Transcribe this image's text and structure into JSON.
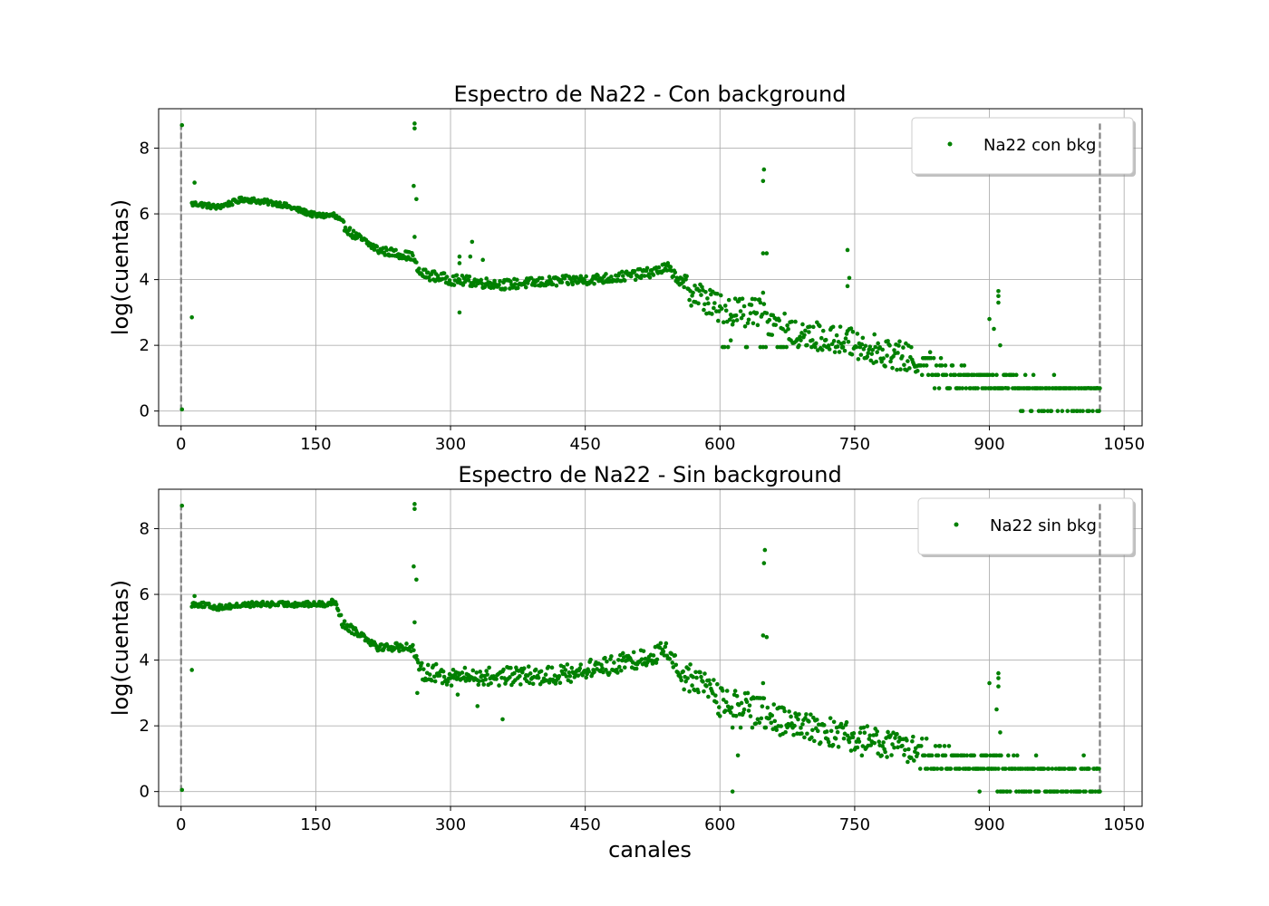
{
  "figure": {
    "xlabel": "canales"
  },
  "chart_data": [
    {
      "type": "scatter",
      "title": "Espectro de Na22 - Con background",
      "xlabel": "",
      "ylabel": "log(cuentas)",
      "xlim": [
        -25,
        1070
      ],
      "ylim": [
        -0.45,
        9.2
      ],
      "xticks": [
        0,
        150,
        300,
        450,
        600,
        750,
        900,
        1050
      ],
      "yticks": [
        0,
        2,
        4,
        6,
        8
      ],
      "grid": true,
      "legend": "top-right",
      "marker_color": "#008000",
      "vline_color": "#808080",
      "vlines": [
        0,
        1023
      ],
      "series": [
        {
          "name": "Na22 con bkg",
          "profile": [
            [
              0,
              6.3
            ],
            [
              20,
              6.3
            ],
            [
              40,
              6.2
            ],
            [
              70,
              6.45
            ],
            [
              110,
              6.3
            ],
            [
              150,
              5.95
            ],
            [
              170,
              5.95
            ],
            [
              190,
              5.4
            ],
            [
              220,
              4.9
            ],
            [
              258,
              4.7
            ],
            [
              265,
              4.2
            ],
            [
              300,
              4.0
            ],
            [
              360,
              3.85
            ],
            [
              420,
              3.95
            ],
            [
              480,
              4.05
            ],
            [
              520,
              4.2
            ],
            [
              540,
              4.35
            ],
            [
              548,
              4.2
            ],
            [
              560,
              3.8
            ],
            [
              600,
              3.1
            ],
            [
              640,
              3.0
            ],
            [
              680,
              2.4
            ],
            [
              760,
              2.0
            ],
            [
              820,
              1.5
            ],
            [
              870,
              1.0
            ],
            [
              1000,
              0.4
            ],
            [
              1020,
              0.3
            ]
          ],
          "outliers": [
            [
              12,
              2.85
            ],
            [
              15,
              6.95
            ],
            [
              260,
              8.75
            ],
            [
              260,
              8.6
            ],
            [
              259,
              6.85
            ],
            [
              262,
              6.45
            ],
            [
              260,
              5.3
            ],
            [
              310,
              4.7
            ],
            [
              310,
              4.5
            ],
            [
              310,
              3.0
            ],
            [
              324,
              5.15
            ],
            [
              322,
              4.7
            ],
            [
              336,
              3.75
            ],
            [
              336,
              4.6
            ],
            [
              360,
              3.7
            ],
            [
              448,
              3.9
            ],
            [
              542,
              4.5
            ],
            [
              649,
              7.35
            ],
            [
              648,
              7.0
            ],
            [
              648,
              4.8
            ],
            [
              652,
              4.8
            ],
            [
              648,
              3.6
            ],
            [
              645,
              3.3
            ],
            [
              742,
              4.9
            ],
            [
              744,
              4.05
            ],
            [
              742,
              3.8
            ],
            [
              612,
              2.15
            ],
            [
              900,
              2.8
            ],
            [
              905,
              2.5
            ],
            [
              910,
              3.65
            ],
            [
              910,
              3.5
            ],
            [
              910,
              3.3
            ],
            [
              912,
              2.0
            ],
            [
              918,
              0.7
            ],
            [
              1010,
              0.7
            ],
            [
              1020,
              0.7
            ],
            [
              1022,
              0.0
            ],
            [
              1,
              8.7
            ],
            [
              1,
              0.05
            ]
          ]
        }
      ]
    },
    {
      "type": "scatter",
      "title": "Espectro de Na22 - Sin background",
      "xlabel": "canales",
      "ylabel": "log(cuentas)",
      "xlim": [
        -25,
        1070
      ],
      "ylim": [
        -0.45,
        9.2
      ],
      "xticks": [
        0,
        150,
        300,
        450,
        600,
        750,
        900,
        1050
      ],
      "yticks": [
        0,
        2,
        4,
        6,
        8
      ],
      "grid": true,
      "legend": "top-right",
      "marker_color": "#008000",
      "vline_color": "#808080",
      "vlines": [
        0,
        1023
      ],
      "series": [
        {
          "name": "Na22 sin bkg",
          "profile": [
            [
              0,
              5.7
            ],
            [
              20,
              5.7
            ],
            [
              40,
              5.6
            ],
            [
              80,
              5.7
            ],
            [
              120,
              5.7
            ],
            [
              160,
              5.7
            ],
            [
              172,
              5.8
            ],
            [
              180,
              5.1
            ],
            [
              200,
              4.8
            ],
            [
              220,
              4.4
            ],
            [
              258,
              4.4
            ],
            [
              265,
              3.7
            ],
            [
              300,
              3.5
            ],
            [
              360,
              3.5
            ],
            [
              420,
              3.55
            ],
            [
              480,
              3.85
            ],
            [
              520,
              4.1
            ],
            [
              540,
              4.3
            ],
            [
              548,
              4.0
            ],
            [
              560,
              3.5
            ],
            [
              590,
              3.2
            ],
            [
              600,
              2.7
            ],
            [
              640,
              2.5
            ],
            [
              680,
              2.0
            ],
            [
              760,
              1.6
            ],
            [
              820,
              1.2
            ],
            [
              870,
              0.8
            ],
            [
              1000,
              0.3
            ],
            [
              1020,
              0.3
            ]
          ],
          "outliers": [
            [
              12,
              3.7
            ],
            [
              15,
              5.95
            ],
            [
              260,
              8.75
            ],
            [
              260,
              8.6
            ],
            [
              259,
              6.85
            ],
            [
              262,
              6.45
            ],
            [
              260,
              5.15
            ],
            [
              263,
              3.0
            ],
            [
              308,
              2.95
            ],
            [
              330,
              2.6
            ],
            [
              358,
              2.2
            ],
            [
              650,
              7.35
            ],
            [
              649,
              6.95
            ],
            [
              648,
              4.75
            ],
            [
              652,
              4.7
            ],
            [
              648,
              3.3
            ],
            [
              614,
              0.0
            ],
            [
              620,
              1.1
            ],
            [
              900,
              3.3
            ],
            [
              910,
              3.6
            ],
            [
              910,
              3.45
            ],
            [
              910,
              3.2
            ],
            [
              908,
              2.5
            ],
            [
              912,
              1.8
            ],
            [
              1005,
              1.1
            ],
            [
              1010,
              0.7
            ],
            [
              1020,
              0.7
            ],
            [
              1022,
              0.0
            ],
            [
              1,
              8.7
            ],
            [
              1,
              0.05
            ]
          ]
        }
      ]
    }
  ]
}
